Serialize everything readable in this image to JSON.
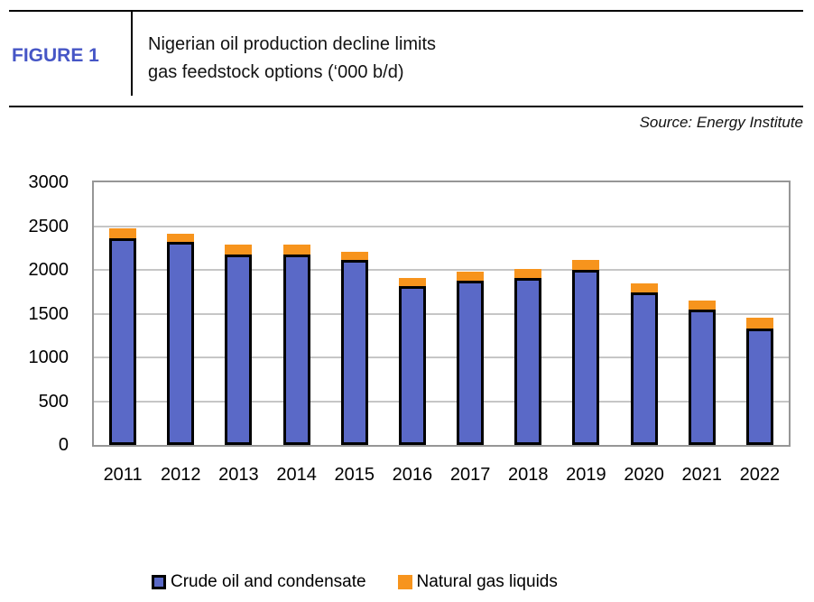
{
  "figure": {
    "label": "FIGURE 1",
    "label_color": "#4656C6",
    "title_line1": "Nigerian oil production decline limits",
    "title_line2": "gas feedstock options (‘000 b/d)",
    "source": "Source: Energy Institute"
  },
  "legend": {
    "items": [
      {
        "label": "Crude oil and condensate",
        "color": "#5A69C7",
        "swatch_border": "#000000"
      },
      {
        "label": "Natural gas liquids",
        "color": "#F7941D",
        "swatch_border": "none"
      }
    ]
  },
  "chart_data": {
    "type": "bar",
    "stacked": true,
    "title": "Nigerian oil production decline limits gas feedstock options ('000 b/d)",
    "xlabel": "",
    "ylabel": "",
    "categories": [
      "2011",
      "2012",
      "2013",
      "2014",
      "2015",
      "2016",
      "2017",
      "2018",
      "2019",
      "2020",
      "2021",
      "2022"
    ],
    "series": [
      {
        "name": "Crude oil and condensate",
        "color": "#5A69C7",
        "border_color": "#000000",
        "values": [
          2360,
          2315,
          2180,
          2180,
          2110,
          1810,
          1875,
          1910,
          2005,
          1745,
          1550,
          1335
        ]
      },
      {
        "name": "Natural gas liquids",
        "color": "#F7941D",
        "border_color": "none",
        "values": [
          110,
          100,
          105,
          105,
          95,
          95,
          100,
          100,
          105,
          100,
          100,
          120
        ]
      }
    ],
    "ylim": [
      0,
      3000
    ],
    "yticks": [
      0,
      500,
      1000,
      1500,
      2000,
      2500,
      3000
    ],
    "grid": true,
    "gridline_color": "#C6C6C6",
    "plot_border_color": "#969696",
    "legend_position": "bottom"
  }
}
